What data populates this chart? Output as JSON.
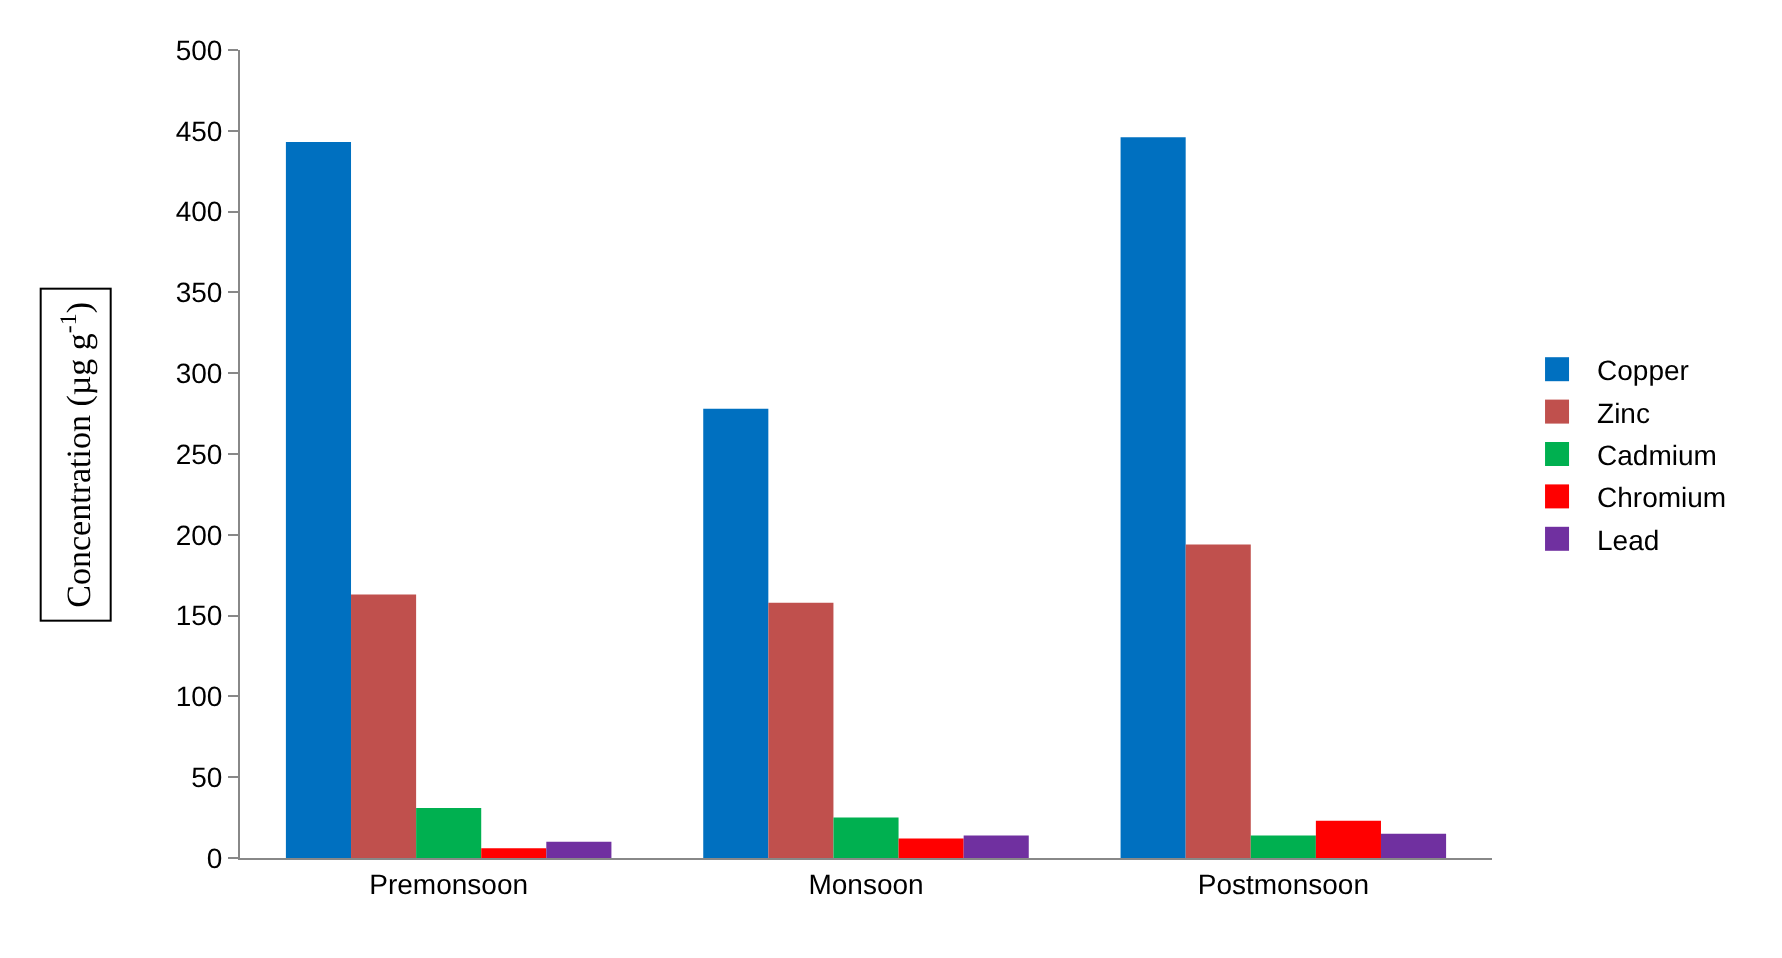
{
  "chart_data": {
    "type": "bar",
    "ylabel": "Concentration (µg g$^{-1}$)",
    "categories": [
      "Premonsoon",
      "Monsoon",
      "Postmonsoon"
    ],
    "series": [
      {
        "name": "Copper",
        "color": "#0070c0",
        "values": [
          443,
          278,
          446
        ]
      },
      {
        "name": "Zinc",
        "color": "#c0504d",
        "values": [
          163,
          158,
          194
        ]
      },
      {
        "name": "Cadmium",
        "color": "#00b050",
        "values": [
          31,
          25,
          14
        ]
      },
      {
        "name": "Chromium",
        "color": "#ff0000",
        "values": [
          6,
          12,
          23
        ]
      },
      {
        "name": "Lead",
        "color": "#7030a0",
        "values": [
          10,
          14,
          15
        ]
      }
    ],
    "ylim": [
      0,
      500
    ],
    "yticks": [
      0,
      50,
      100,
      150,
      200,
      250,
      300,
      350,
      400,
      450,
      500
    ],
    "grid": false,
    "legend": "right"
  }
}
